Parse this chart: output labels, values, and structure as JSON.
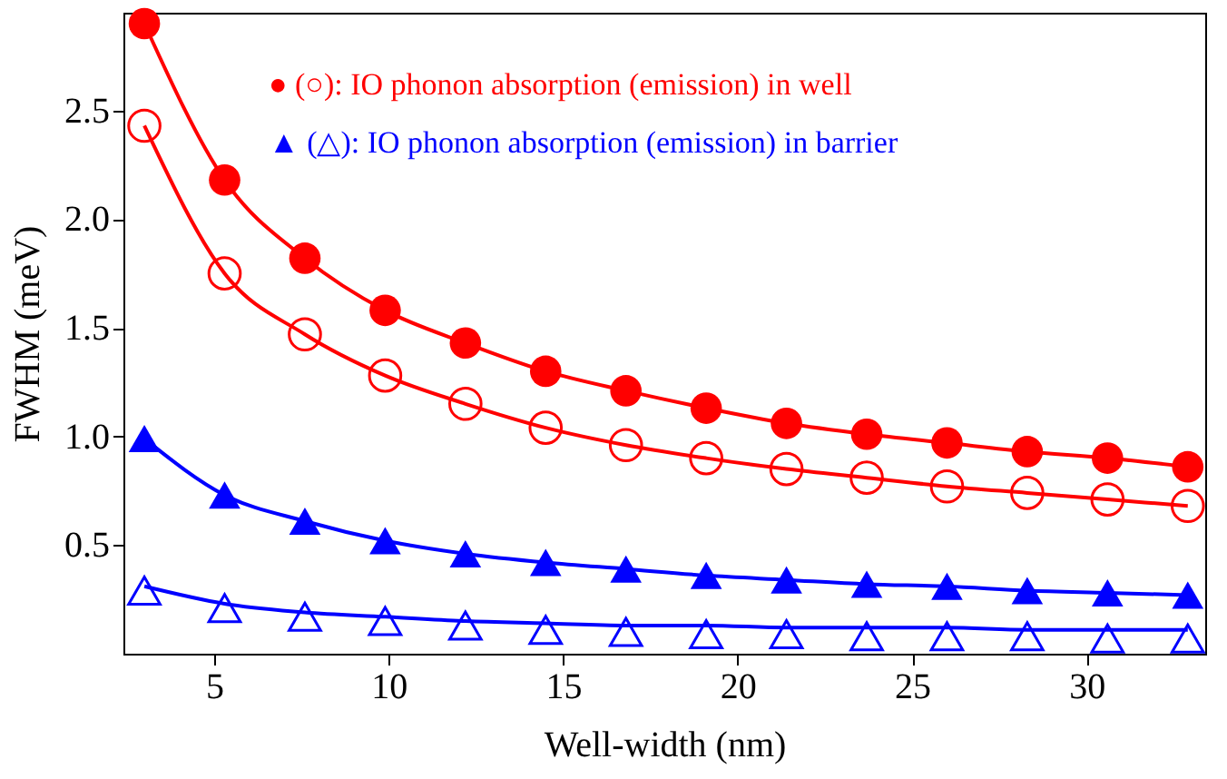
{
  "chart_data": {
    "type": "scatter",
    "xlabel": "Well-width (nm)",
    "ylabel": "FWHM (meV)",
    "x": [
      3.0,
      5.3,
      7.6,
      9.9,
      12.2,
      14.5,
      16.8,
      19.1,
      21.4,
      23.7,
      26.0,
      28.3,
      30.6,
      32.9
    ],
    "series": [
      {
        "type": "scatter",
        "marker": "circle",
        "color": "#ff0000",
        "values": [
          2.9,
          2.18,
          1.82,
          1.58,
          1.43,
          1.3,
          1.21,
          1.13,
          1.06,
          1.01,
          0.97,
          0.93,
          0.9,
          0.86
        ]
      },
      {
        "type": "scatter",
        "marker": "circle",
        "color": "#ff0000",
        "values": [
          2.43,
          1.75,
          1.47,
          1.28,
          1.15,
          1.04,
          0.96,
          0.9,
          0.85,
          0.81,
          0.77,
          0.74,
          0.71,
          0.68
        ]
      },
      {
        "type": "scatter",
        "marker": "triangle",
        "color": "#0000ff",
        "values": [
          0.99,
          0.73,
          0.61,
          0.52,
          0.46,
          0.42,
          0.39,
          0.36,
          0.34,
          0.32,
          0.31,
          0.29,
          0.28,
          0.27
        ]
      },
      {
        "type": "scatter",
        "marker": "triangle",
        "color": "#0000ff",
        "values": [
          0.29,
          0.21,
          0.17,
          0.15,
          0.13,
          0.11,
          0.1,
          0.09,
          0.09,
          0.08,
          0.08,
          0.08,
          0.07,
          0.07
        ]
      },
      {
        "type": "line",
        "color": "#ff0000",
        "values": [
          2.9,
          2.18,
          1.82,
          1.58,
          1.43,
          1.3,
          1.21,
          1.13,
          1.06,
          1.01,
          0.97,
          0.93,
          0.9,
          0.86
        ]
      },
      {
        "type": "line",
        "color": "#ff0000",
        "values": [
          2.43,
          1.75,
          1.47,
          1.28,
          1.15,
          1.04,
          0.96,
          0.9,
          0.85,
          0.81,
          0.77,
          0.74,
          0.71,
          0.68
        ]
      },
      {
        "type": "line",
        "color": "#0000ff",
        "values": [
          0.99,
          0.73,
          0.61,
          0.52,
          0.46,
          0.42,
          0.39,
          0.36,
          0.34,
          0.32,
          0.31,
          0.29,
          0.28,
          0.27
        ]
      },
      {
        "type": "line",
        "color": "#0000ff",
        "values": [
          0.31,
          0.23,
          0.19,
          0.17,
          0.15,
          0.14,
          0.13,
          0.13,
          0.12,
          0.12,
          0.12,
          0.11,
          0.11,
          0.11
        ]
      }
    ],
    "annotations": [
      "● (○): IO phonon absorption (emission) in well",
      "▲ (△): IO phonon absorption (emission) in barrier"
    ],
    "xlim": [
      2.4,
      33.4
    ],
    "ylim": [
      0,
      2.95
    ],
    "xticks": [
      5,
      10,
      15,
      20,
      25,
      30
    ],
    "yticks": [
      0.5,
      {
        "value": 1,
        "label": "1.0"
      },
      1.5,
      {
        "value": 2,
        "label": "2.0"
      },
      2.5
    ],
    "grid": false
  }
}
